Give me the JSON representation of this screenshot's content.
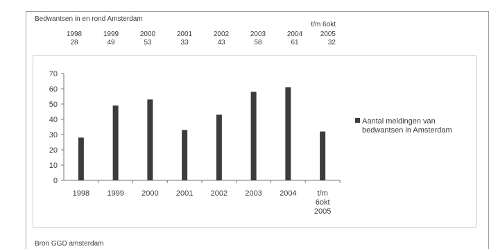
{
  "table": {
    "title": "Bedwantsen in en rond Amsterdam",
    "columns": [
      {
        "header": "1998",
        "value": "28"
      },
      {
        "header": "1999",
        "value": "49"
      },
      {
        "header": "2000",
        "value": "53"
      },
      {
        "header": "2001",
        "value": "33"
      },
      {
        "header": "2002",
        "value": "43"
      },
      {
        "header": "2003",
        "value": "58"
      },
      {
        "header": "2004",
        "value": "61"
      },
      {
        "header_line1": "t/m 6okt",
        "header": "2005",
        "value": "32"
      }
    ]
  },
  "source": "Bron GGD amsterdam",
  "chart_data": {
    "type": "bar",
    "categories": [
      "1998",
      "1999",
      "2000",
      "2001",
      "2002",
      "2003",
      "2004",
      "t/m 6okt 2005"
    ],
    "category_labels": [
      [
        "1998"
      ],
      [
        "1999"
      ],
      [
        "2000"
      ],
      [
        "2001"
      ],
      [
        "2002"
      ],
      [
        "2003"
      ],
      [
        "2004"
      ],
      [
        "t/m",
        "6okt",
        "2005"
      ]
    ],
    "series": [
      {
        "name": "Aantal meldingen van bedwantsen in Amsterdam",
        "values": [
          28,
          49,
          53,
          33,
          43,
          58,
          61,
          32
        ],
        "color": "#3c3c3c"
      }
    ],
    "legend_lines": [
      "Aantal meldingen van",
      "bedwantsen in Amsterdam"
    ],
    "ylim": [
      0,
      70
    ],
    "yticks": [
      0,
      10,
      20,
      30,
      40,
      50,
      60,
      70
    ],
    "grid": false,
    "legend_position": "right"
  }
}
